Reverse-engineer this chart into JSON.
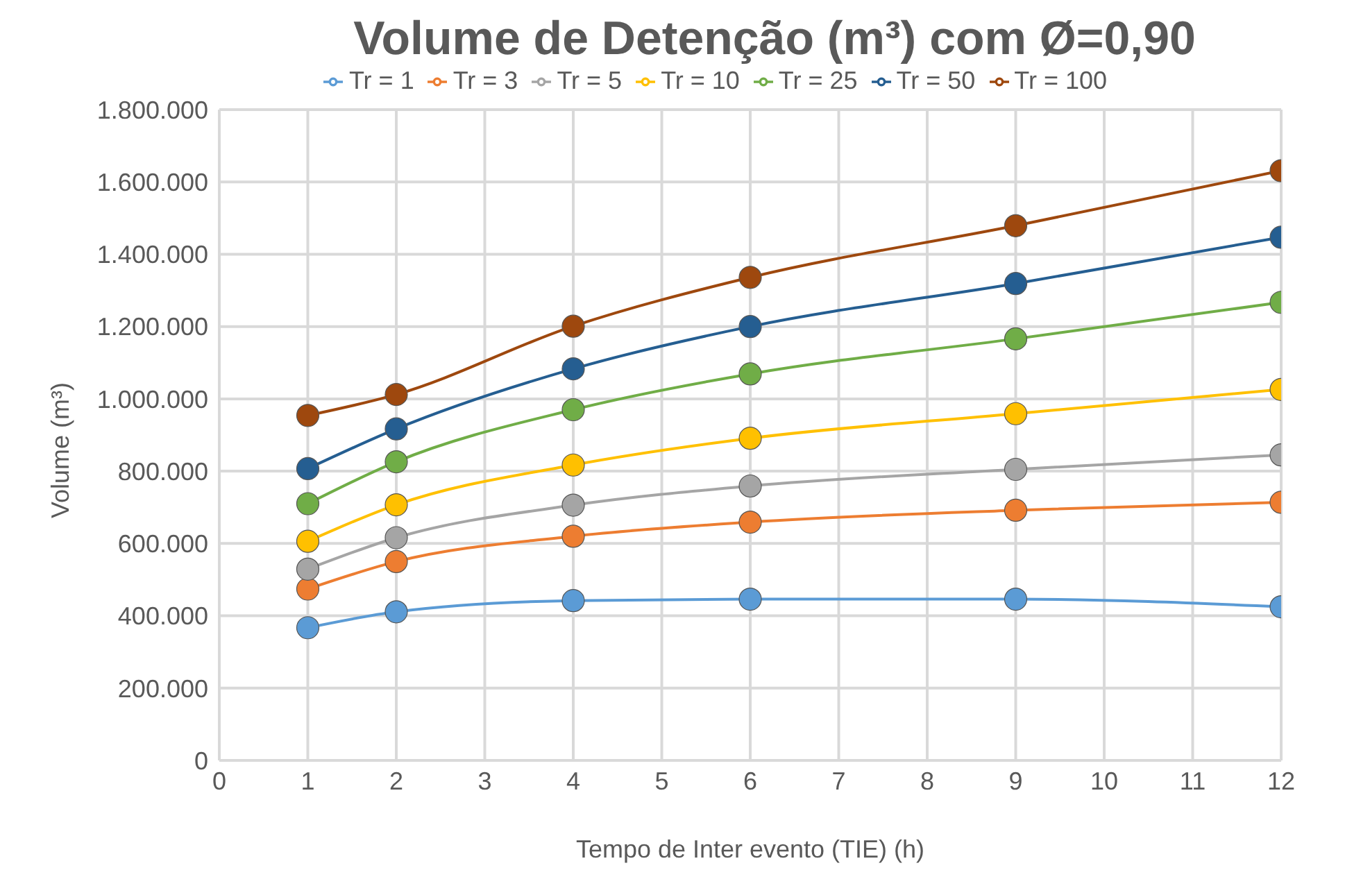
{
  "chart_data": {
    "type": "line",
    "title": "Volume de Detenção (m³) com Ø=0,90",
    "xlabel": "Tempo de Inter evento (TIE) (h)",
    "ylabel": "Volume (m³)",
    "x": [
      1,
      2,
      4,
      6,
      9,
      12
    ],
    "series": [
      {
        "name": "Tr = 1",
        "color": "#5b9bd5",
        "values": [
          367000,
          411000,
          442000,
          446000,
          446000,
          425000
        ]
      },
      {
        "name": "Tr = 3",
        "color": "#ed7d31",
        "values": [
          474000,
          550000,
          620000,
          659000,
          692000,
          714000
        ]
      },
      {
        "name": "Tr = 5",
        "color": "#a5a5a5",
        "values": [
          529000,
          616000,
          706000,
          759000,
          805000,
          845000
        ]
      },
      {
        "name": "Tr = 10",
        "color": "#ffc000",
        "values": [
          606000,
          707000,
          817000,
          891000,
          959000,
          1026000
        ]
      },
      {
        "name": "Tr = 25",
        "color": "#70ad47",
        "values": [
          710000,
          826000,
          970000,
          1069000,
          1166000,
          1267000
        ]
      },
      {
        "name": "Tr = 50",
        "color": "#255e91",
        "values": [
          807000,
          917000,
          1083000,
          1200000,
          1319000,
          1447000
        ]
      },
      {
        "name": "Tr = 100",
        "color": "#9e480e",
        "values": [
          954000,
          1012000,
          1201000,
          1336000,
          1479000,
          1631000
        ]
      }
    ],
    "xlim": [
      0,
      12
    ],
    "xticks": [
      0,
      1,
      2,
      3,
      4,
      5,
      6,
      7,
      8,
      9,
      10,
      11,
      12
    ],
    "ylim": [
      0,
      1800000
    ],
    "yticks": [
      {
        "value": 0,
        "label": "0"
      },
      {
        "value": 200000,
        "label": "200.000"
      },
      {
        "value": 400000,
        "label": "400.000"
      },
      {
        "value": 600000,
        "label": "600.000"
      },
      {
        "value": 800000,
        "label": "800.000"
      },
      {
        "value": 1000000,
        "label": "1.000.000"
      },
      {
        "value": 1200000,
        "label": "1.200.000"
      },
      {
        "value": 1400000,
        "label": "1.400.000"
      },
      {
        "value": 1600000,
        "label": "1.600.000"
      },
      {
        "value": 1800000,
        "label": "1.800.000"
      }
    ],
    "grid": true,
    "legend": "top",
    "marker": "circle",
    "line_style": "solid"
  }
}
